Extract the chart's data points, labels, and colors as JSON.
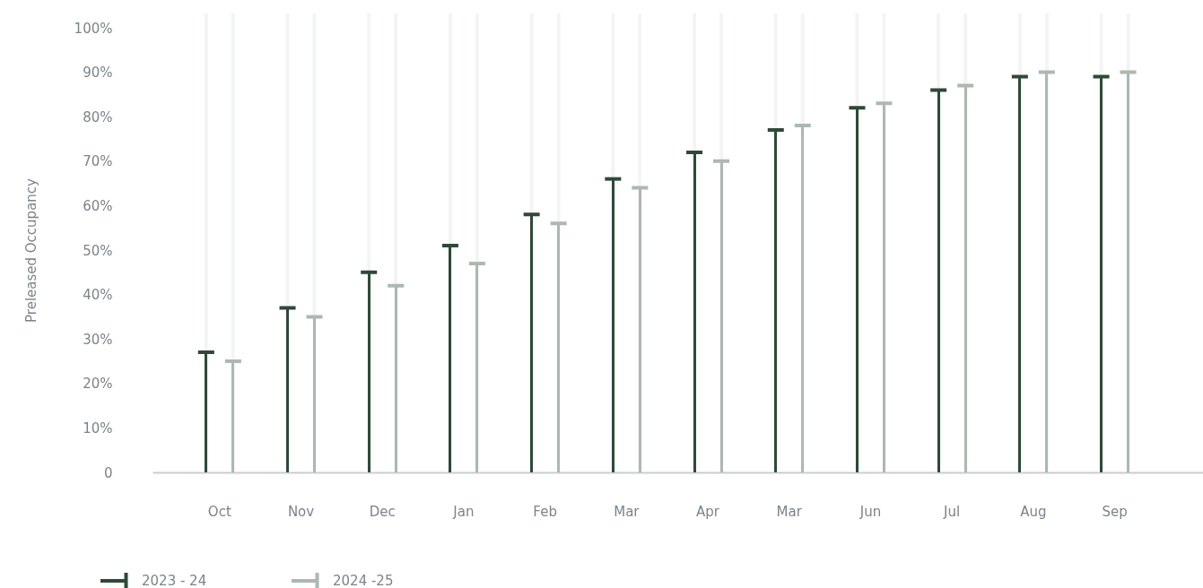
{
  "chart_data": {
    "type": "bar",
    "ylabel": "Preleased Occupancy",
    "categories": [
      "Oct",
      "Nov",
      "Dec",
      "Jan",
      "Feb",
      "Mar",
      "Apr",
      "Mar",
      "Jun",
      "Jul",
      "Aug",
      "Sep"
    ],
    "series": [
      {
        "name": "2023 - 24",
        "color": "#2d4a37",
        "values": [
          27,
          37,
          45,
          51,
          58,
          66,
          72,
          77,
          82,
          86,
          89,
          89
        ]
      },
      {
        "name": "2024 -25",
        "color": "#adb8b0",
        "values": [
          25,
          35,
          42,
          47,
          56,
          64,
          70,
          78,
          83,
          87,
          90,
          90
        ]
      }
    ],
    "ylim": [
      0,
      100
    ],
    "yticks": [
      0,
      {
        "value": 10,
        "label": "10%"
      },
      {
        "value": 20,
        "label": "20%"
      },
      {
        "value": 30,
        "label": "30%"
      },
      {
        "value": 40,
        "label": "40%"
      },
      {
        "value": 50,
        "label": "50%"
      },
      {
        "value": 60,
        "label": "60%"
      },
      {
        "value": 70,
        "label": "70%"
      },
      {
        "value": 80,
        "label": "80%"
      },
      {
        "value": 90,
        "label": "90%"
      },
      {
        "value": 100,
        "label": "100%"
      }
    ],
    "grid": "x",
    "legend": "bottom left"
  }
}
